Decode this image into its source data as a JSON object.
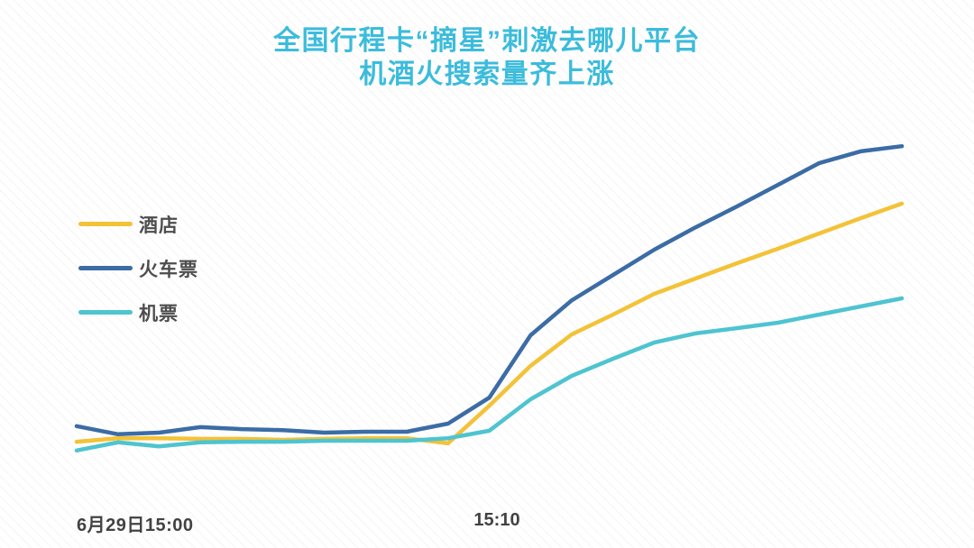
{
  "title": {
    "line1": "全国行程卡“摘星”刺激去哪儿平台",
    "line2": "机酒火搜索量齐上涨",
    "color": "#3cbcdc"
  },
  "chart_data": {
    "type": "line",
    "title": "全国行程卡“摘星”刺激去哪儿平台 机酒火搜索量齐上涨",
    "xlabel": "",
    "ylabel": "",
    "x_axis": {
      "labels": [
        {
          "index": 0,
          "text": "6月29日15:00"
        },
        {
          "index": 10,
          "text": "15:10"
        }
      ],
      "points_are_minutes": true,
      "num_points": 21
    },
    "y_axis": {
      "visible": false,
      "note": "no axis shown; values are relative search-volume estimates"
    },
    "ylim": [
      0,
      105
    ],
    "grid": false,
    "legend_position": "left-middle",
    "series": [
      {
        "id": "hotel",
        "name": "酒店",
        "color": "#F3C237",
        "values": [
          8.3,
          9.4,
          9.4,
          9.2,
          9.2,
          8.9,
          9.2,
          9.4,
          9.4,
          7.8,
          19.4,
          31.7,
          41.4,
          47.5,
          53.9,
          58.6,
          63.3,
          67.8,
          72.5,
          77.2,
          81.7
        ]
      },
      {
        "id": "train-ticket",
        "name": "火车票",
        "color": "#3B6CA5",
        "values": [
          13.1,
          10.6,
          11.1,
          12.8,
          12.2,
          11.9,
          11.1,
          11.4,
          11.4,
          13.9,
          21.9,
          41.1,
          51.9,
          59.7,
          67.5,
          74.4,
          80.8,
          87.5,
          94.2,
          97.8,
          99.4
        ]
      },
      {
        "id": "flight-ticket",
        "name": "机票",
        "color": "#4EC4D0",
        "values": [
          5.6,
          8.1,
          6.9,
          8.1,
          8.3,
          8.3,
          8.6,
          8.6,
          8.6,
          9.4,
          11.7,
          21.4,
          28.6,
          33.9,
          38.9,
          41.7,
          43.3,
          45.0,
          47.5,
          50.0,
          52.5
        ]
      }
    ]
  }
}
